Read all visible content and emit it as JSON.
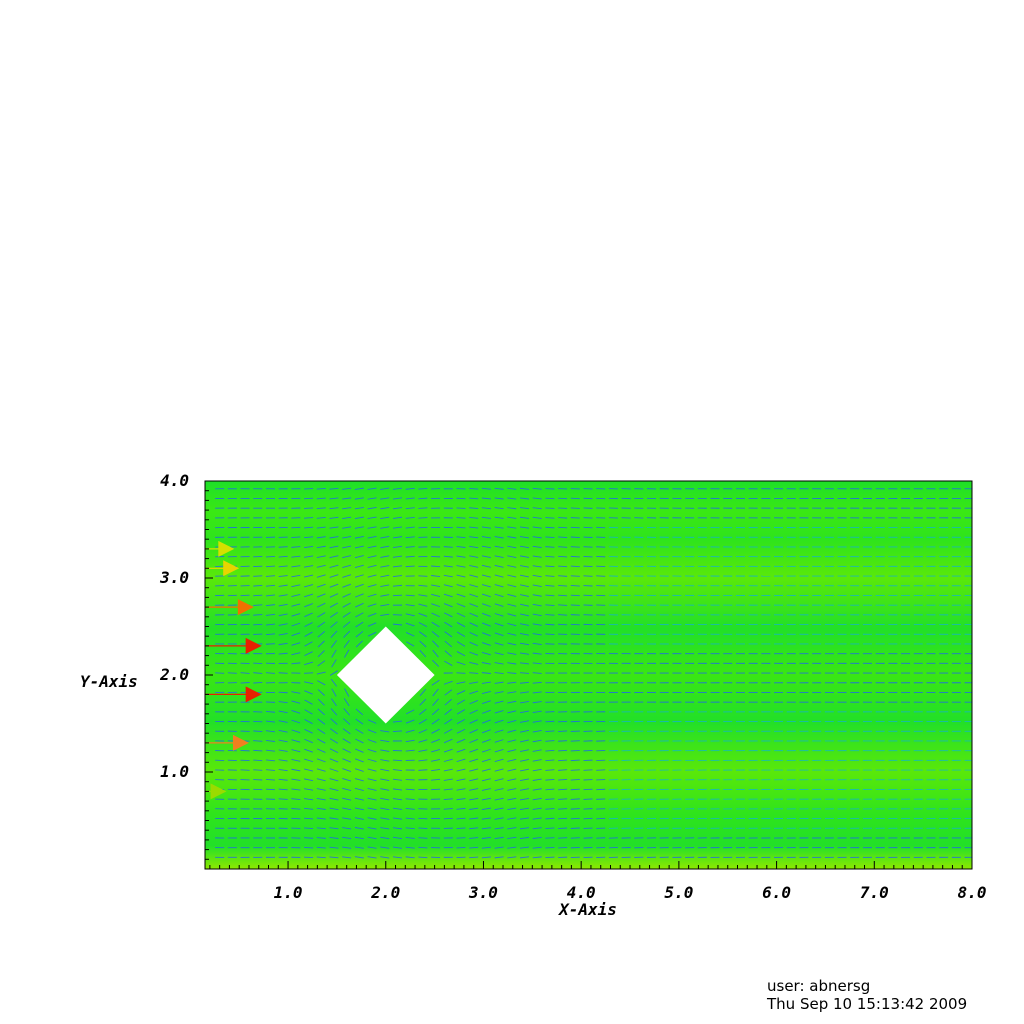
{
  "chart_data": {
    "type": "vector-field",
    "xlabel": "X-Axis",
    "ylabel": "Y-Axis",
    "xlim": [
      0.15,
      8.0
    ],
    "ylim": [
      0.0,
      4.0
    ],
    "x_ticks": [
      "1.0",
      "2.0",
      "3.0",
      "4.0",
      "5.0",
      "6.0",
      "7.0",
      "8.0"
    ],
    "x_tick_values": [
      1,
      2,
      3,
      4,
      5,
      6,
      7,
      8
    ],
    "y_ticks": [
      "1.0",
      "2.0",
      "3.0",
      "4.0"
    ],
    "y_tick_values": [
      1,
      2,
      3,
      4
    ],
    "obstacle": {
      "shape": "diamond",
      "center": [
        2.0,
        2.0
      ],
      "half_width": 0.5,
      "half_height": 0.5
    },
    "inflow_arrows": [
      {
        "y": 3.3,
        "length": 0.3,
        "color": "#d4e000"
      },
      {
        "y": 3.1,
        "length": 0.35,
        "color": "#e8d400"
      },
      {
        "y": 2.7,
        "length": 0.5,
        "color": "#f07000"
      },
      {
        "y": 2.3,
        "length": 0.58,
        "color": "#e82000"
      },
      {
        "y": 1.8,
        "length": 0.58,
        "color": "#e82000"
      },
      {
        "y": 1.3,
        "length": 0.45,
        "color": "#f08020"
      },
      {
        "y": 0.8,
        "length": 0.22,
        "color": "#9adb00"
      }
    ],
    "colors": {
      "field": "#22e61e",
      "field_light": "#6fe800",
      "vectors": "#1e64f0",
      "vectors_alt": "#14b4c8"
    }
  },
  "footer": {
    "user": "user: abnersg",
    "timestamp": "Thu Sep 10 15:13:42 2009"
  }
}
